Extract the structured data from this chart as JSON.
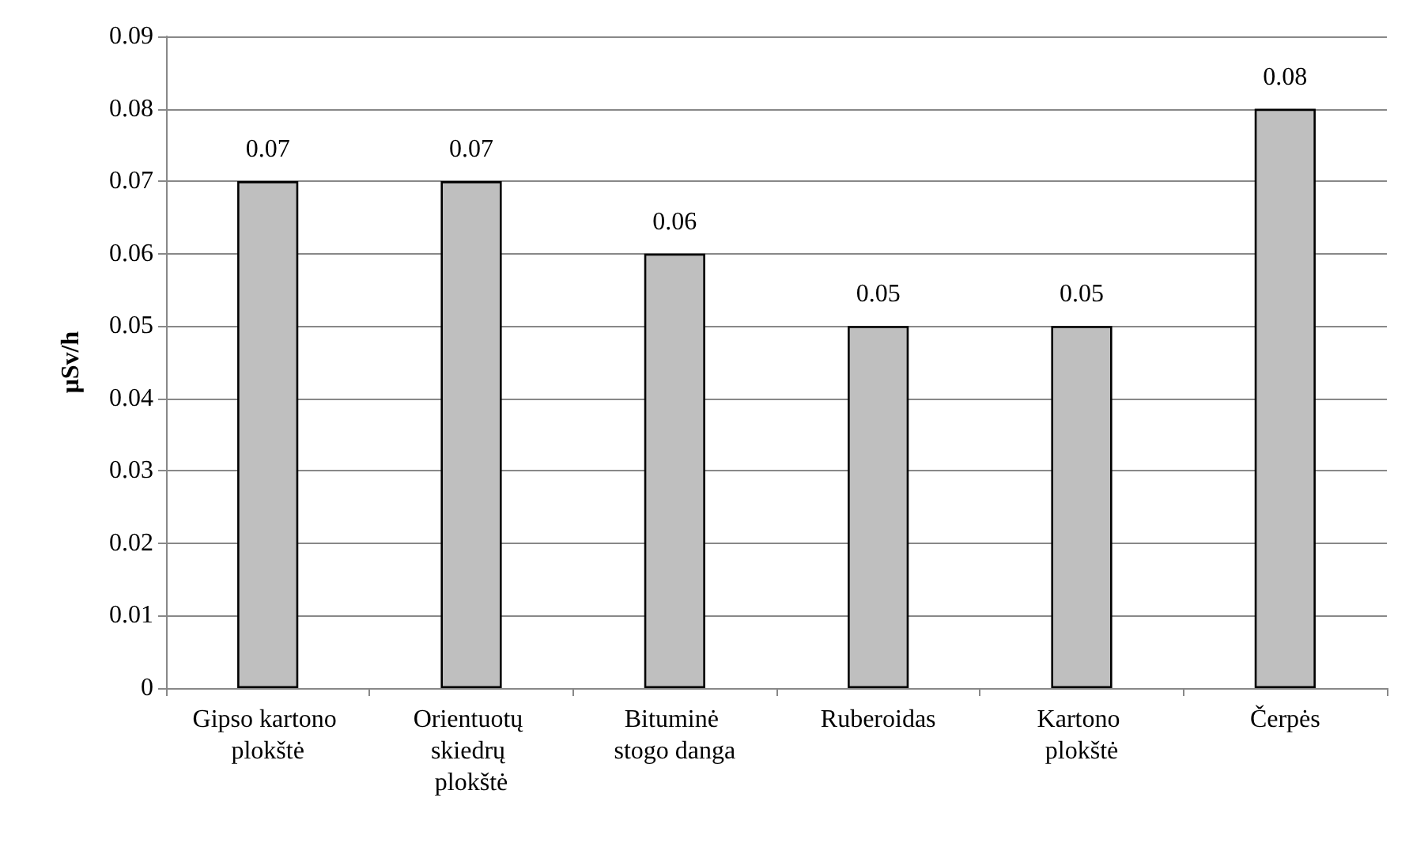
{
  "chart_data": {
    "type": "bar",
    "ylabel": "μSv/h",
    "categories": [
      "Gipso kartono plokštė",
      "Orientuotų skiedrų plokštė",
      "Bituminė stogo danga",
      "Ruberoidas",
      "Kartono plokštė",
      "Čerpės"
    ],
    "values": [
      0.07,
      0.07,
      0.06,
      0.05,
      0.05,
      0.08
    ],
    "color": "#bfbfbf",
    "ylim": [
      0,
      0.09
    ],
    "yticks": [
      0,
      0.01,
      0.02,
      0.03,
      0.04,
      0.05,
      0.06,
      0.07,
      0.08,
      0.09
    ],
    "grid": "y",
    "data_labels": true
  }
}
